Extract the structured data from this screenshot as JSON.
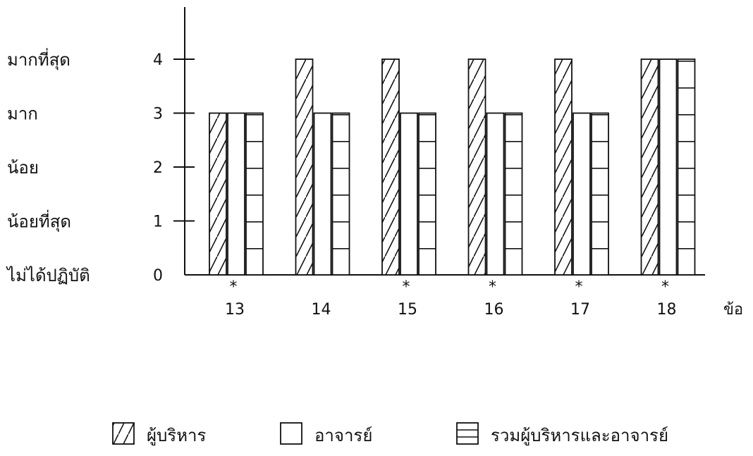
{
  "chart_data": {
    "type": "bar",
    "title": "",
    "xlabel": "ข้อ",
    "ylabel": "",
    "ylim": [
      0,
      4
    ],
    "y_ticks": [
      0,
      1,
      2,
      3,
      4
    ],
    "y_tick_labels": [
      "0",
      "1",
      "2",
      "3",
      "4"
    ],
    "y_level_labels": [
      "ไม่ได้ปฏิบัติ",
      "น้อยที่สุด",
      "น้อย",
      "มาก",
      "มากที่สุด"
    ],
    "categories": [
      "13",
      "14",
      "15",
      "16",
      "17",
      "18"
    ],
    "category_markers": [
      "*",
      "",
      "*",
      "*",
      "*",
      "*"
    ],
    "series": [
      {
        "name": "ผู้บริหาร",
        "pattern": "diagonal-hatch",
        "values": [
          3,
          4,
          4,
          4,
          4,
          4
        ]
      },
      {
        "name": "อาจารย์",
        "pattern": "empty",
        "values": [
          3,
          3,
          3,
          3,
          3,
          4
        ]
      },
      {
        "name": "รวมผู้บริหารและอาจารย์",
        "pattern": "horizontal-lines",
        "values": [
          3,
          3,
          3,
          3,
          3,
          4
        ]
      }
    ],
    "grid": false,
    "legend_position": "bottom"
  }
}
